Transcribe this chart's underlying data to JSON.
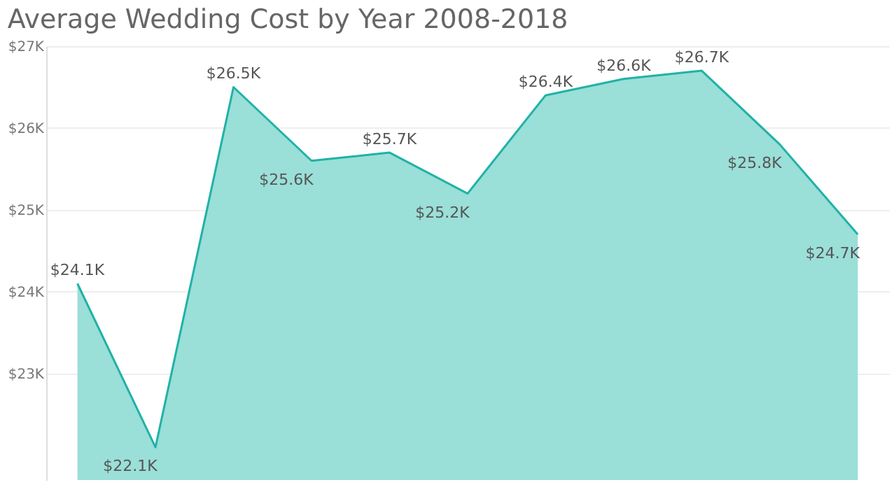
{
  "chart_data": {
    "type": "area",
    "title": "Average Wedding Cost by Year 2008-2018",
    "categories": [
      null,
      null,
      null,
      null,
      null,
      null,
      null,
      null,
      null,
      null,
      null
    ],
    "series": [
      {
        "color": "#20b2a6",
        "values": [
          24.1,
          22.1,
          26.5,
          25.6,
          25.7,
          25.2,
          26.4,
          26.6,
          26.7,
          25.8,
          24.7
        ],
        "value_labels": [
          "$24.1K",
          "$22.1K",
          "$26.5K",
          "$25.6K",
          "$25.7K",
          "$25.2K",
          "$26.4K",
          "$26.6K",
          "$26.7K",
          "$25.8K",
          "$24.7K"
        ]
      }
    ],
    "ylim": [
      21.7,
      27
    ],
    "yticks": [
      {
        "value": 23,
        "label": "$23K"
      },
      {
        "value": 24,
        "label": "$24K"
      },
      {
        "value": 25,
        "label": "$25K"
      },
      {
        "value": 26,
        "label": "$26K"
      },
      {
        "value": 27,
        "label": "$27K"
      }
    ],
    "grid": "y",
    "tick_labels": "y"
  }
}
